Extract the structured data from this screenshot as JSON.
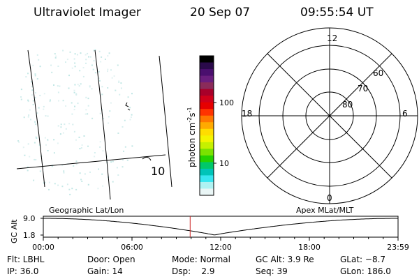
{
  "header": {
    "instrument": "Ultraviolet Imager",
    "date": "20 Sep 07",
    "time": "09:55:54 UT"
  },
  "geo_panel": {
    "lon_label": "10"
  },
  "colorbar": {
    "unit_label": "photon cm",
    "unit_exp1": "-2",
    "unit_mid": "s",
    "unit_exp2": "-1",
    "ticks": [
      "100",
      "10"
    ],
    "colors_top_to_bottom": [
      "#000000",
      "#2a0a4a",
      "#4a0f6e",
      "#6a1e7e",
      "#8a2b5a",
      "#a8002a",
      "#d0001a",
      "#e60000",
      "#ff3300",
      "#ff7700",
      "#ffaa00",
      "#ffdd00",
      "#f4f400",
      "#c6f000",
      "#7ae200",
      "#24d100",
      "#00c86a",
      "#00c4b8",
      "#38e6f0",
      "#aef2f2",
      "#eaf6f6"
    ]
  },
  "polar_panel": {
    "mlt_top": "12",
    "mlt_right": "6",
    "mlt_bottom": "0",
    "mlt_left": "18",
    "lat_labels": [
      "60",
      "70",
      "80"
    ]
  },
  "orbit_panel": {
    "ylabel": "GC Alt",
    "ytick_top": "9.0",
    "ytick_bottom": "1.8",
    "left_title": "Geographic Lat/Lon",
    "right_title": "Apex MLat/MLT",
    "time_ticks": [
      "00:00",
      "06:00",
      "12:00",
      "18:00",
      "23:59"
    ],
    "current_time_fraction": 0.4139,
    "marker_color": "#cc2222"
  },
  "footer": {
    "filter": "Flt: LBHL",
    "door": "Door: Open",
    "mode": "Mode: Normal",
    "gc_alt": "GC Alt: 3.9 Re",
    "glat": "GLat: −8.7",
    "ip": "IP: 36.0",
    "gain": "Gain: 14",
    "dsp": "Dsp:    2.9",
    "seq": "Seq: 39",
    "glon": "GLon: 186.0"
  }
}
